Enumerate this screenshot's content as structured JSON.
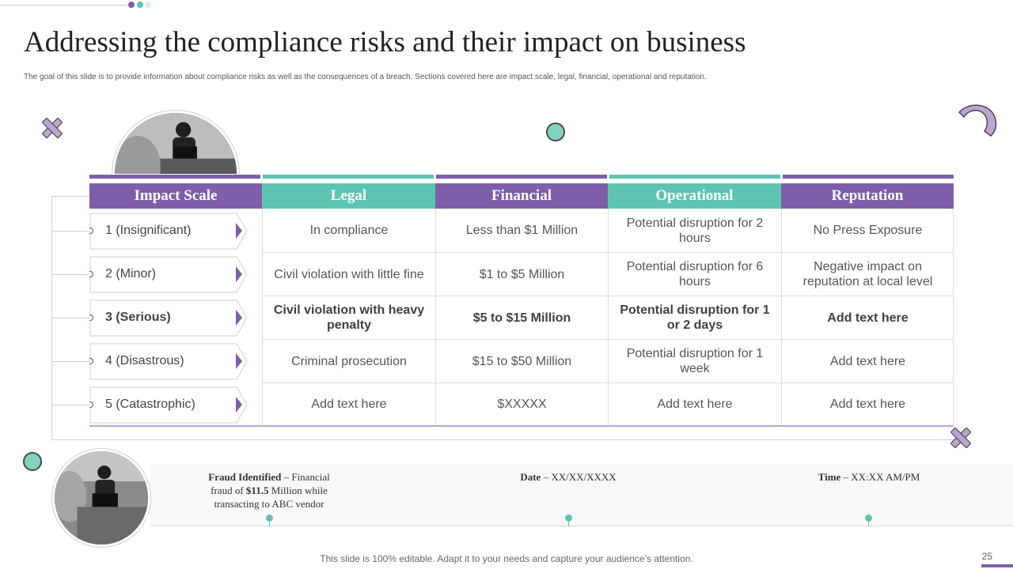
{
  "title": "Addressing the compliance risks and their impact on business",
  "subtitle": "The goal of this slide is to provide information about compliance risks as well as the consequences of a breach. Sections covered here are impact scale, legal,  financial, operational and reputation.",
  "colors": {
    "purple": "#7e5ea9",
    "teal": "#5ec4b0",
    "light_teal": "#7fd3c0"
  },
  "table": {
    "headers": [
      "Impact Scale",
      "Legal",
      "Financial",
      "Operational",
      "Reputation"
    ],
    "rows": [
      {
        "scale": "1 (Insignificant)",
        "legal": "In compliance",
        "financial": "Less than $1 Million",
        "operational": "Potential disruption for 2 hours",
        "reputation": "No Press Exposure"
      },
      {
        "scale": "2 (Minor)",
        "legal": "Civil violation with little fine",
        "financial": "$1 to $5 Million",
        "operational": "Potential disruption for 6 hours",
        "reputation": "Negative impact on reputation at local level"
      },
      {
        "scale": "3 (Serious)",
        "legal": "Civil violation with heavy penalty",
        "financial": "$5 to $15 Million",
        "operational": "Potential disruption for 1 or 2 days",
        "reputation": "Add text here"
      },
      {
        "scale": "4 (Disastrous)",
        "legal": "Criminal prosecution",
        "financial": "$15 to $50 Million",
        "operational": "Potential disruption for 1 week",
        "reputation": "Add text here"
      },
      {
        "scale": "5 (Catastrophic)",
        "legal": "Add text here",
        "financial": "$XXXXX",
        "operational": "Add text here",
        "reputation": "Add text here"
      }
    ]
  },
  "timeline": {
    "fraud_label": "Fraud Identified",
    "fraud_text_1": " – Financial fraud of ",
    "fraud_amount": "$11.5",
    "fraud_text_2": " Million while transacting to ABC vendor",
    "date_label": "Date",
    "date_value": " – XX/XX/XXXX",
    "time_label": "Time",
    "time_value": " – XX:XX AM/PM"
  },
  "icons": [
    "cross-icon",
    "circle-icon",
    "arc-icon",
    "photo-icon"
  ],
  "footer": "This slide is 100% editable. Adapt it to your needs and capture your audience’s attention.",
  "page_number": "25"
}
